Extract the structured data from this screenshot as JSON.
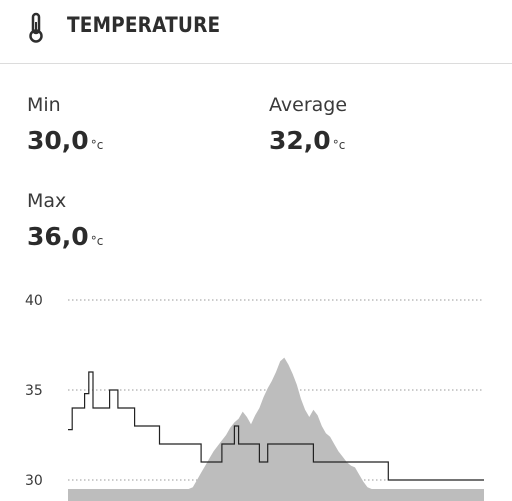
{
  "header": {
    "title": "TEMPERATURE",
    "icon": "thermometer-icon"
  },
  "stats": {
    "min": {
      "label": "Min",
      "value": "30,0",
      "unit": "°c"
    },
    "average": {
      "label": "Average",
      "value": "32,0",
      "unit": "°c"
    },
    "max": {
      "label": "Max",
      "value": "36,0",
      "unit": "°c"
    }
  },
  "chart_data": {
    "type": "area",
    "ylim": [
      29.5,
      40
    ],
    "yticks": [
      40,
      35,
      30
    ],
    "grid": "dotted",
    "colors": {
      "area": "#bdbdbd",
      "line": "#222222",
      "grid": "#9a9a9a"
    },
    "x": [
      0,
      1,
      2,
      3,
      4,
      5,
      6,
      7,
      8,
      9,
      10,
      11,
      12,
      13,
      14,
      15,
      16,
      17,
      18,
      19,
      20,
      21,
      22,
      23,
      24,
      25,
      26,
      27,
      28,
      29,
      30,
      31,
      32,
      33,
      34,
      35,
      36,
      37,
      38,
      39,
      40,
      41,
      42,
      43,
      44,
      45,
      46,
      47,
      48,
      49,
      50,
      51,
      52,
      53,
      54,
      55,
      56,
      57,
      58,
      59,
      60,
      61,
      62,
      63,
      64,
      65,
      66,
      67,
      68,
      69,
      70,
      71,
      72,
      73,
      74,
      75,
      76,
      77,
      78,
      79,
      80,
      81,
      82,
      83,
      84,
      85,
      86,
      87,
      88,
      89,
      90,
      91,
      92,
      93,
      94,
      95,
      96,
      97,
      98,
      99,
      100
    ],
    "series": [
      {
        "values": [
          29.5,
          29.5,
          29.5,
          29.5,
          29.5,
          29.5,
          29.5,
          29.5,
          29.5,
          29.5,
          29.5,
          29.5,
          29.5,
          29.5,
          29.5,
          29.5,
          29.5,
          29.5,
          29.5,
          29.5,
          29.5,
          29.5,
          29.5,
          29.5,
          29.5,
          29.5,
          29.5,
          29.5,
          29.5,
          29.5,
          29.6,
          30.0,
          30.4,
          30.8,
          31.2,
          31.6,
          31.9,
          32.2,
          32.5,
          32.9,
          33.2,
          33.4,
          33.8,
          33.5,
          33.1,
          33.6,
          34.0,
          34.6,
          35.1,
          35.5,
          36.0,
          36.6,
          36.8,
          36.4,
          35.9,
          35.3,
          34.5,
          33.9,
          33.5,
          33.9,
          33.6,
          33.0,
          32.6,
          32.4,
          32.0,
          31.6,
          31.3,
          31.0,
          30.8,
          30.7,
          30.3,
          29.9,
          29.6,
          29.5,
          29.5,
          29.5,
          29.5,
          29.5,
          29.5,
          29.5,
          29.5,
          29.5,
          29.5,
          29.5,
          29.5,
          29.5,
          29.5,
          29.5,
          29.5,
          29.5,
          29.5,
          29.5,
          29.5,
          29.5,
          29.5,
          29.5,
          29.5,
          29.5,
          29.5,
          29.5,
          29.5
        ]
      },
      {
        "values": [
          32.8,
          34.0,
          34.0,
          34.0,
          34.8,
          36.0,
          34.0,
          34.0,
          34.0,
          34.0,
          35.0,
          35.0,
          34.0,
          34.0,
          34.0,
          34.0,
          33.0,
          33.0,
          33.0,
          33.0,
          33.0,
          33.0,
          32.0,
          32.0,
          32.0,
          32.0,
          32.0,
          32.0,
          32.0,
          32.0,
          32.0,
          32.0,
          31.0,
          31.0,
          31.0,
          31.0,
          31.0,
          32.0,
          32.0,
          32.0,
          33.0,
          32.0,
          32.0,
          32.0,
          32.0,
          32.0,
          31.0,
          31.0,
          32.0,
          32.0,
          32.0,
          32.0,
          32.0,
          32.0,
          32.0,
          32.0,
          32.0,
          32.0,
          32.0,
          31.0,
          31.0,
          31.0,
          31.0,
          31.0,
          31.0,
          31.0,
          31.0,
          31.0,
          31.0,
          31.0,
          31.0,
          31.0,
          31.0,
          31.0,
          31.0,
          31.0,
          31.0,
          30.0,
          30.0,
          30.0,
          30.0,
          30.0,
          30.0,
          30.0,
          30.0,
          30.0,
          30.0,
          30.0,
          30.0,
          30.0,
          30.0,
          30.0,
          30.0,
          30.0,
          30.0,
          30.0,
          30.0,
          30.0,
          30.0,
          30.0,
          30.0
        ]
      }
    ]
  }
}
